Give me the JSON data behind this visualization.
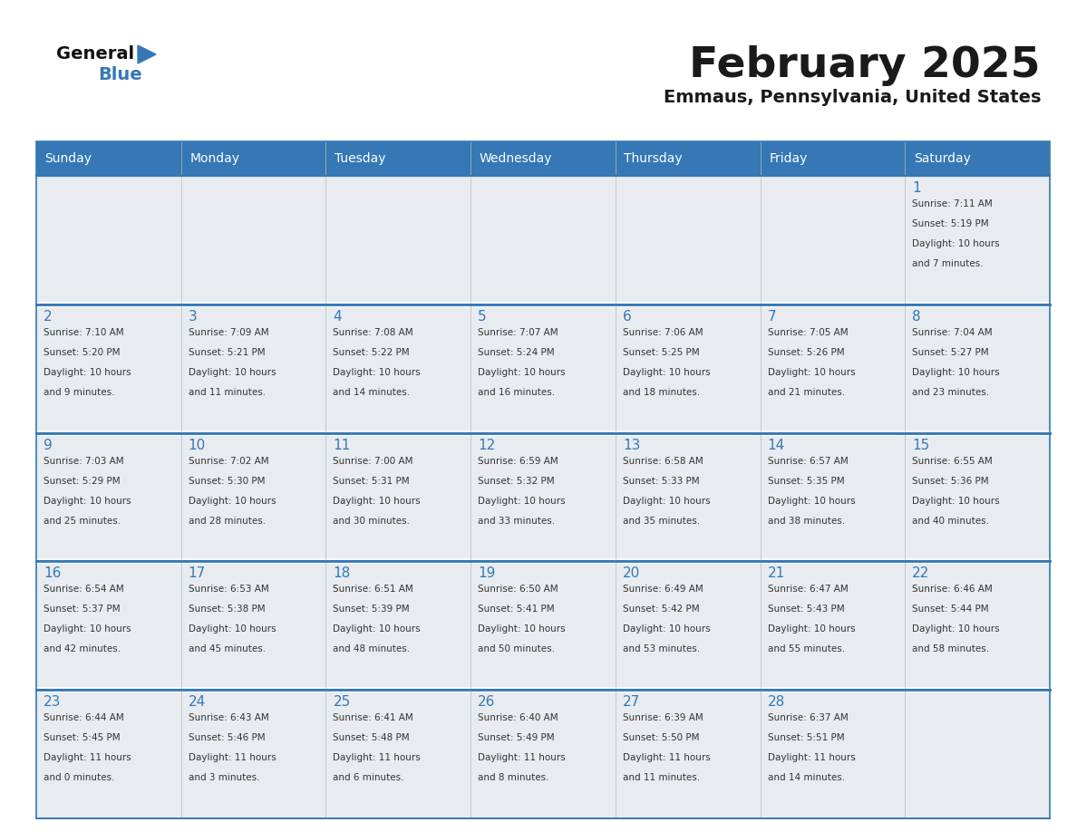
{
  "title": "February 2025",
  "subtitle": "Emmaus, Pennsylvania, United States",
  "days_of_week": [
    "Sunday",
    "Monday",
    "Tuesday",
    "Wednesday",
    "Thursday",
    "Friday",
    "Saturday"
  ],
  "header_bg": "#3578B5",
  "header_text": "#FFFFFF",
  "cell_bg": "#E8ECF0",
  "day_number_color": "#3578B5",
  "text_color": "#333333",
  "border_color": "#3578B5",
  "logo_text_color": "#1a1a1a",
  "logo_blue_color": "#3578B5",
  "title_color": "#1a1a1a",
  "calendar_data": [
    [
      null,
      null,
      null,
      null,
      null,
      null,
      {
        "day": "1",
        "sunrise": "7:11 AM",
        "sunset": "5:19 PM",
        "daylight_line1": "Daylight: 10 hours",
        "daylight_line2": "and 7 minutes."
      }
    ],
    [
      {
        "day": "2",
        "sunrise": "7:10 AM",
        "sunset": "5:20 PM",
        "daylight_line1": "Daylight: 10 hours",
        "daylight_line2": "and 9 minutes."
      },
      {
        "day": "3",
        "sunrise": "7:09 AM",
        "sunset": "5:21 PM",
        "daylight_line1": "Daylight: 10 hours",
        "daylight_line2": "and 11 minutes."
      },
      {
        "day": "4",
        "sunrise": "7:08 AM",
        "sunset": "5:22 PM",
        "daylight_line1": "Daylight: 10 hours",
        "daylight_line2": "and 14 minutes."
      },
      {
        "day": "5",
        "sunrise": "7:07 AM",
        "sunset": "5:24 PM",
        "daylight_line1": "Daylight: 10 hours",
        "daylight_line2": "and 16 minutes."
      },
      {
        "day": "6",
        "sunrise": "7:06 AM",
        "sunset": "5:25 PM",
        "daylight_line1": "Daylight: 10 hours",
        "daylight_line2": "and 18 minutes."
      },
      {
        "day": "7",
        "sunrise": "7:05 AM",
        "sunset": "5:26 PM",
        "daylight_line1": "Daylight: 10 hours",
        "daylight_line2": "and 21 minutes."
      },
      {
        "day": "8",
        "sunrise": "7:04 AM",
        "sunset": "5:27 PM",
        "daylight_line1": "Daylight: 10 hours",
        "daylight_line2": "and 23 minutes."
      }
    ],
    [
      {
        "day": "9",
        "sunrise": "7:03 AM",
        "sunset": "5:29 PM",
        "daylight_line1": "Daylight: 10 hours",
        "daylight_line2": "and 25 minutes."
      },
      {
        "day": "10",
        "sunrise": "7:02 AM",
        "sunset": "5:30 PM",
        "daylight_line1": "Daylight: 10 hours",
        "daylight_line2": "and 28 minutes."
      },
      {
        "day": "11",
        "sunrise": "7:00 AM",
        "sunset": "5:31 PM",
        "daylight_line1": "Daylight: 10 hours",
        "daylight_line2": "and 30 minutes."
      },
      {
        "day": "12",
        "sunrise": "6:59 AM",
        "sunset": "5:32 PM",
        "daylight_line1": "Daylight: 10 hours",
        "daylight_line2": "and 33 minutes."
      },
      {
        "day": "13",
        "sunrise": "6:58 AM",
        "sunset": "5:33 PM",
        "daylight_line1": "Daylight: 10 hours",
        "daylight_line2": "and 35 minutes."
      },
      {
        "day": "14",
        "sunrise": "6:57 AM",
        "sunset": "5:35 PM",
        "daylight_line1": "Daylight: 10 hours",
        "daylight_line2": "and 38 minutes."
      },
      {
        "day": "15",
        "sunrise": "6:55 AM",
        "sunset": "5:36 PM",
        "daylight_line1": "Daylight: 10 hours",
        "daylight_line2": "and 40 minutes."
      }
    ],
    [
      {
        "day": "16",
        "sunrise": "6:54 AM",
        "sunset": "5:37 PM",
        "daylight_line1": "Daylight: 10 hours",
        "daylight_line2": "and 42 minutes."
      },
      {
        "day": "17",
        "sunrise": "6:53 AM",
        "sunset": "5:38 PM",
        "daylight_line1": "Daylight: 10 hours",
        "daylight_line2": "and 45 minutes."
      },
      {
        "day": "18",
        "sunrise": "6:51 AM",
        "sunset": "5:39 PM",
        "daylight_line1": "Daylight: 10 hours",
        "daylight_line2": "and 48 minutes."
      },
      {
        "day": "19",
        "sunrise": "6:50 AM",
        "sunset": "5:41 PM",
        "daylight_line1": "Daylight: 10 hours",
        "daylight_line2": "and 50 minutes."
      },
      {
        "day": "20",
        "sunrise": "6:49 AM",
        "sunset": "5:42 PM",
        "daylight_line1": "Daylight: 10 hours",
        "daylight_line2": "and 53 minutes."
      },
      {
        "day": "21",
        "sunrise": "6:47 AM",
        "sunset": "5:43 PM",
        "daylight_line1": "Daylight: 10 hours",
        "daylight_line2": "and 55 minutes."
      },
      {
        "day": "22",
        "sunrise": "6:46 AM",
        "sunset": "5:44 PM",
        "daylight_line1": "Daylight: 10 hours",
        "daylight_line2": "and 58 minutes."
      }
    ],
    [
      {
        "day": "23",
        "sunrise": "6:44 AM",
        "sunset": "5:45 PM",
        "daylight_line1": "Daylight: 11 hours",
        "daylight_line2": "and 0 minutes."
      },
      {
        "day": "24",
        "sunrise": "6:43 AM",
        "sunset": "5:46 PM",
        "daylight_line1": "Daylight: 11 hours",
        "daylight_line2": "and 3 minutes."
      },
      {
        "day": "25",
        "sunrise": "6:41 AM",
        "sunset": "5:48 PM",
        "daylight_line1": "Daylight: 11 hours",
        "daylight_line2": "and 6 minutes."
      },
      {
        "day": "26",
        "sunrise": "6:40 AM",
        "sunset": "5:49 PM",
        "daylight_line1": "Daylight: 11 hours",
        "daylight_line2": "and 8 minutes."
      },
      {
        "day": "27",
        "sunrise": "6:39 AM",
        "sunset": "5:50 PM",
        "daylight_line1": "Daylight: 11 hours",
        "daylight_line2": "and 11 minutes."
      },
      {
        "day": "28",
        "sunrise": "6:37 AM",
        "sunset": "5:51 PM",
        "daylight_line1": "Daylight: 11 hours",
        "daylight_line2": "and 14 minutes."
      },
      null
    ]
  ]
}
